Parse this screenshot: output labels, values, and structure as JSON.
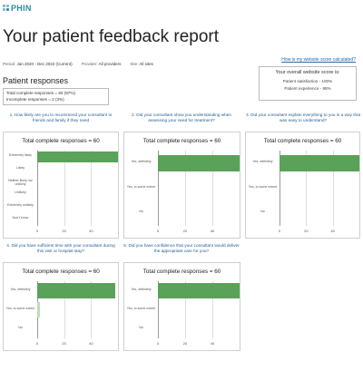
{
  "logo": {
    "text": "PHIN"
  },
  "page_title": "Your patient feedback report",
  "filters": {
    "period_label": "Period:",
    "period_value": "Jan 2020 - Dec 2022 (Current)",
    "provider_label": "Provider:",
    "provider_value": "All providers",
    "site_label": "Site:",
    "site_value": "All sites"
  },
  "how_link": "How is my website score calculated?",
  "score": {
    "title": "Your overall website score is:",
    "line1": "Patient satisfaction - 100%",
    "line2": "Patient experience - 98%"
  },
  "section_title": "Patient responses",
  "responses": {
    "complete": "Total complete responses = 60 (97%)",
    "incomplete": "Incomplete responses = 2 (3%)"
  },
  "colors": {
    "bar": "#5aa25a",
    "bar_light": "#bcddb8",
    "question": "#1f5c8f"
  },
  "chart_data": [
    {
      "type": "bar",
      "question": "1. How likely are you to recommend your consultant to friends and family if they need",
      "title": "Total complete responses = 60",
      "categories": [
        "Extremely likely",
        "Likely",
        "Neither likely nor unlikely",
        "Unlikely",
        "Extremely unlikely",
        "Don't know"
      ],
      "values": [
        60,
        0,
        0,
        0,
        0,
        0
      ],
      "xlim": [
        0,
        60
      ],
      "ticks": [
        "0",
        "20",
        "40"
      ]
    },
    {
      "type": "bar",
      "question": "2. Did your consultant show you understanding when assessing your need for treatment?",
      "title": "Total complete responses = 60",
      "categories": [
        "Yes, definitely",
        "Yes, to some extent",
        "No"
      ],
      "values": [
        60,
        0,
        0
      ],
      "xlim": [
        0,
        60
      ],
      "ticks": [
        "0",
        "20",
        "40"
      ]
    },
    {
      "type": "bar",
      "question": "3. Did your consultant explain everything to you in a way that was easy to understand?",
      "title": "Total complete responses = 60",
      "categories": [
        "Yes, definitely",
        "Yes, to some extent",
        "No"
      ],
      "values": [
        60,
        0,
        0
      ],
      "xlim": [
        0,
        60
      ],
      "ticks": [
        "0",
        "20",
        "40"
      ]
    },
    {
      "type": "bar",
      "question": "4. Did you have sufficient time with your consultant during this visit or hospital stay?",
      "title": "Total complete responses = 60",
      "categories": [
        "Yes, definitely",
        "Yes, to some extent",
        "No"
      ],
      "values": [
        58,
        2,
        0
      ],
      "xlim": [
        0,
        60
      ],
      "ticks": [
        "0",
        "20",
        "40"
      ]
    },
    {
      "type": "bar",
      "question": "5. Did you have confidence that your consultant would deliver the appropriate care for you?",
      "title": "Total complete responses = 60",
      "categories": [
        "Yes, definitely",
        "Yes, to some extent",
        "No"
      ],
      "values": [
        60,
        0,
        0
      ],
      "xlim": [
        0,
        60
      ],
      "ticks": [
        "0",
        "20",
        "40"
      ]
    }
  ]
}
